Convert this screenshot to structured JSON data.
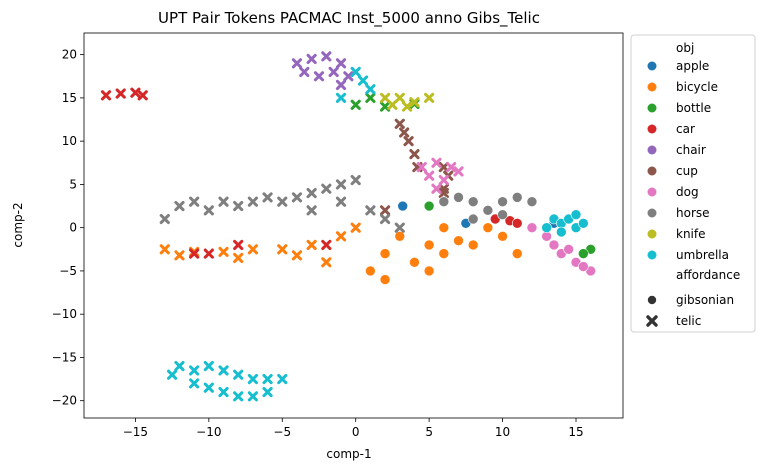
{
  "chart_data": {
    "type": "scatter",
    "title": "UPT Pair Tokens PACMAC Inst_5000 anno Gibs_Telic",
    "xlabel": "comp-1",
    "ylabel": "comp-2",
    "xlim": [
      -18.5,
      18.2
    ],
    "ylim": [
      -22,
      22.5
    ],
    "xticks": [
      -15,
      -10,
      -5,
      0,
      5,
      10,
      15
    ],
    "yticks": [
      20,
      15,
      10,
      5,
      0,
      -5,
      -10,
      -15,
      -20
    ],
    "xtick_labels": [
      "−15",
      "−10",
      "−5",
      "0",
      "5",
      "10",
      "15"
    ],
    "ytick_labels": [
      "20",
      "15",
      "10",
      "5",
      "0",
      "−5",
      "−10",
      "−15",
      "−20"
    ],
    "grid": false,
    "legend_placement": "outside-right",
    "hue_title": "obj",
    "style_title": "affordance",
    "series": [
      {
        "name": "apple",
        "color": "#1f77b4",
        "points": [
          [
            3.2,
            2.5,
            "o"
          ],
          [
            7.5,
            0.5,
            "o"
          ],
          [
            13.5,
            0.5,
            "o"
          ],
          [
            15,
            0,
            "o"
          ]
        ]
      },
      {
        "name": "bicycle",
        "color": "#ff7f0e",
        "points": [
          [
            -13,
            -2.5,
            "x"
          ],
          [
            -11,
            -2.8,
            "x"
          ],
          [
            -9,
            -2.8,
            "x"
          ],
          [
            -7,
            -2.5,
            "x"
          ],
          [
            -5,
            -2.5,
            "x"
          ],
          [
            -3,
            -2,
            "x"
          ],
          [
            -2,
            -4,
            "x"
          ],
          [
            -1,
            -1,
            "x"
          ],
          [
            0,
            0,
            "x"
          ],
          [
            1,
            -5,
            "o"
          ],
          [
            2,
            -3,
            "o"
          ],
          [
            2,
            -6,
            "o"
          ],
          [
            3,
            -1,
            "o"
          ],
          [
            4,
            -4,
            "o"
          ],
          [
            5,
            -2,
            "o"
          ],
          [
            5,
            -5,
            "o"
          ],
          [
            6,
            0,
            "o"
          ],
          [
            6,
            -3,
            "o"
          ],
          [
            7,
            -1.5,
            "o"
          ],
          [
            8,
            -2,
            "o"
          ],
          [
            9,
            0,
            "o"
          ],
          [
            10,
            -1,
            "o"
          ],
          [
            11,
            -3,
            "o"
          ],
          [
            -12,
            -3.2,
            "x"
          ],
          [
            -8,
            -3.5,
            "x"
          ],
          [
            -4,
            -3.2,
            "x"
          ]
        ]
      },
      {
        "name": "bottle",
        "color": "#2ca02c",
        "points": [
          [
            0,
            14.2,
            "x"
          ],
          [
            2,
            14,
            "x"
          ],
          [
            4,
            14.3,
            "x"
          ],
          [
            1,
            15,
            "x"
          ],
          [
            16,
            -2.5,
            "o"
          ],
          [
            15.5,
            -3,
            "o"
          ],
          [
            5,
            2.5,
            "o"
          ]
        ]
      },
      {
        "name": "car",
        "color": "#d62728",
        "points": [
          [
            -17,
            15.3,
            "x"
          ],
          [
            -16,
            15.5,
            "x"
          ],
          [
            -15,
            15.6,
            "x"
          ],
          [
            -14.5,
            15.3,
            "x"
          ],
          [
            -11,
            -3,
            "x"
          ],
          [
            -10,
            -3,
            "x"
          ],
          [
            -8,
            -2,
            "x"
          ],
          [
            -2,
            -2,
            "x"
          ],
          [
            9.5,
            1,
            "o"
          ],
          [
            10.5,
            0.8,
            "o"
          ],
          [
            11,
            0.5,
            "o"
          ]
        ]
      },
      {
        "name": "chair",
        "color": "#9467bd",
        "points": [
          [
            -4,
            19,
            "x"
          ],
          [
            -3,
            19.5,
            "x"
          ],
          [
            -2,
            19.8,
            "x"
          ],
          [
            -1,
            19,
            "x"
          ],
          [
            -3.5,
            18,
            "x"
          ],
          [
            -2.5,
            17.5,
            "x"
          ],
          [
            -1.5,
            18,
            "x"
          ],
          [
            -0.5,
            17.5,
            "x"
          ],
          [
            -1,
            16.5,
            "x"
          ]
        ]
      },
      {
        "name": "cup",
        "color": "#8c564b",
        "points": [
          [
            3.3,
            11,
            "x"
          ],
          [
            3.6,
            10,
            "x"
          ],
          [
            4,
            8.5,
            "x"
          ],
          [
            4.2,
            7,
            "x"
          ],
          [
            3,
            12,
            "x"
          ],
          [
            6,
            4,
            "x"
          ],
          [
            2,
            2,
            "x"
          ],
          [
            6,
            7,
            "x"
          ],
          [
            6.3,
            6,
            "x"
          ],
          [
            6,
            4.5,
            "x"
          ]
        ]
      },
      {
        "name": "dog",
        "color": "#e377c2",
        "points": [
          [
            4.5,
            7,
            "x"
          ],
          [
            5.5,
            7.5,
            "x"
          ],
          [
            6.5,
            7,
            "x"
          ],
          [
            5,
            6,
            "x"
          ],
          [
            6,
            5.5,
            "x"
          ],
          [
            7,
            6.5,
            "x"
          ],
          [
            5.5,
            4.5,
            "x"
          ],
          [
            13,
            -1,
            "o"
          ],
          [
            13.5,
            -2,
            "o"
          ],
          [
            14,
            -3,
            "o"
          ],
          [
            15,
            -4,
            "o"
          ],
          [
            16,
            -5,
            "o"
          ],
          [
            15.5,
            -4.5,
            "o"
          ],
          [
            12,
            0,
            "o"
          ],
          [
            14.5,
            -2.5,
            "o"
          ]
        ]
      },
      {
        "name": "horse",
        "color": "#7f7f7f",
        "points": [
          [
            -13,
            1,
            "x"
          ],
          [
            -12,
            2.5,
            "x"
          ],
          [
            -11,
            3,
            "x"
          ],
          [
            -10,
            2,
            "x"
          ],
          [
            -9,
            3,
            "x"
          ],
          [
            -8,
            2.5,
            "x"
          ],
          [
            -7,
            3,
            "x"
          ],
          [
            -6,
            3.5,
            "x"
          ],
          [
            -5,
            3,
            "x"
          ],
          [
            -4,
            3.5,
            "x"
          ],
          [
            -3,
            4,
            "x"
          ],
          [
            -2,
            4.5,
            "x"
          ],
          [
            -1,
            5,
            "x"
          ],
          [
            0,
            5.5,
            "x"
          ],
          [
            -1,
            3,
            "x"
          ],
          [
            -3,
            2,
            "x"
          ],
          [
            1,
            2,
            "x"
          ],
          [
            2,
            1,
            "x"
          ],
          [
            3,
            0,
            "x"
          ],
          [
            6,
            3,
            "o"
          ],
          [
            7,
            3.5,
            "o"
          ],
          [
            8,
            3,
            "o"
          ],
          [
            9,
            2,
            "o"
          ],
          [
            10,
            3,
            "o"
          ],
          [
            11,
            3.5,
            "o"
          ],
          [
            12,
            3,
            "o"
          ],
          [
            8,
            1,
            "o"
          ],
          [
            10,
            1.5,
            "o"
          ]
        ]
      },
      {
        "name": "knife",
        "color": "#bcbd22",
        "points": [
          [
            2,
            15,
            "x"
          ],
          [
            3,
            15,
            "x"
          ],
          [
            4,
            14.5,
            "x"
          ],
          [
            5,
            15,
            "x"
          ],
          [
            3.5,
            14,
            "x"
          ],
          [
            2.5,
            14.2,
            "x"
          ]
        ]
      },
      {
        "name": "umbrella",
        "color": "#17becf",
        "points": [
          [
            0,
            18,
            "x"
          ],
          [
            0.5,
            17,
            "x"
          ],
          [
            1,
            16,
            "x"
          ],
          [
            -1,
            15,
            "x"
          ],
          [
            -12,
            -16,
            "x"
          ],
          [
            -11,
            -16.5,
            "x"
          ],
          [
            -10,
            -16,
            "x"
          ],
          [
            -9,
            -16.5,
            "x"
          ],
          [
            -8,
            -17,
            "x"
          ],
          [
            -7,
            -17.5,
            "x"
          ],
          [
            -6,
            -17.5,
            "x"
          ],
          [
            -5,
            -17.5,
            "x"
          ],
          [
            -11,
            -18,
            "x"
          ],
          [
            -10,
            -18.5,
            "x"
          ],
          [
            -9,
            -19,
            "x"
          ],
          [
            -8,
            -19.5,
            "x"
          ],
          [
            -7,
            -19.5,
            "x"
          ],
          [
            -12.5,
            -17,
            "x"
          ],
          [
            -6,
            -19,
            "x"
          ],
          [
            13.5,
            1,
            "o"
          ],
          [
            14,
            0.5,
            "o"
          ],
          [
            14.5,
            1,
            "o"
          ],
          [
            15,
            1.5,
            "o"
          ],
          [
            15,
            0,
            "o"
          ],
          [
            14,
            -0.5,
            "o"
          ],
          [
            13,
            0,
            "o"
          ],
          [
            15.5,
            0.5,
            "o"
          ]
        ]
      }
    ],
    "affordance": [
      {
        "name": "gibsonian",
        "marker": "o"
      },
      {
        "name": "telic",
        "marker": "x"
      }
    ]
  }
}
